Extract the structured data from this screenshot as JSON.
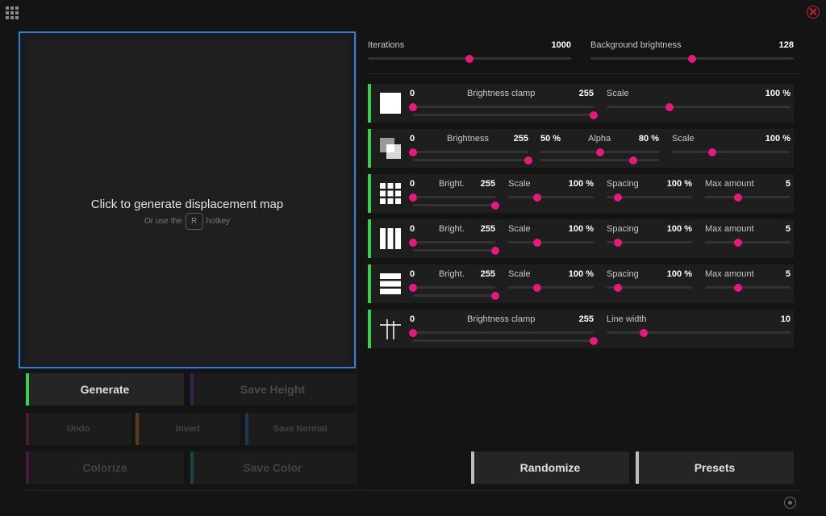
{
  "canvas": {
    "title": "Click to generate displacement map",
    "hint_before": "Or use the",
    "hint_key": "R",
    "hint_after": "hotkey"
  },
  "left_buttons": {
    "generate": "Generate",
    "save_height": "Save Height",
    "undo": "Undo",
    "invert": "Invert",
    "save_normal": "Save Normal",
    "colorize": "Colorize",
    "save_color": "Save Color"
  },
  "global": {
    "iterations_label": "Iterations",
    "iterations_value": "1000",
    "bg_label": "Background brightness",
    "bg_value": "128"
  },
  "rows": {
    "r1": {
      "icon": "solid-square-icon",
      "min": "0",
      "clamp_label": "Brightness clamp",
      "clamp_value": "255",
      "scale_label": "Scale",
      "scale_value": "100 %"
    },
    "r2": {
      "icon": "overlapping-squares-icon",
      "min": "0",
      "bright_label": "Brightness",
      "bright_value": "255",
      "alpha_min": "50 %",
      "alpha_label": "Alpha",
      "alpha_value": "80 %",
      "scale_label": "Scale",
      "scale_value": "100 %"
    },
    "r3": {
      "icon": "grid-icon",
      "min": "0",
      "bright_label": "Bright.",
      "bright_value": "255",
      "scale_label": "Scale",
      "scale_value": "100 %",
      "spacing_label": "Spacing",
      "spacing_value": "100 %",
      "max_label": "Max amount",
      "max_value": "5"
    },
    "r4": {
      "icon": "vertical-bars-icon",
      "min": "0",
      "bright_label": "Bright.",
      "bright_value": "255",
      "scale_label": "Scale",
      "scale_value": "100 %",
      "spacing_label": "Spacing",
      "spacing_value": "100 %",
      "max_label": "Max amount",
      "max_value": "5"
    },
    "r5": {
      "icon": "horizontal-bars-icon",
      "min": "0",
      "bright_label": "Bright.",
      "bright_value": "255",
      "scale_label": "Scale",
      "scale_value": "100 %",
      "spacing_label": "Spacing",
      "spacing_value": "100 %",
      "max_label": "Max amount",
      "max_value": "5"
    },
    "r6": {
      "icon": "lines-icon",
      "min": "0",
      "clamp_label": "Brightness clamp",
      "clamp_value": "255",
      "width_label": "Line width",
      "width_value": "10"
    }
  },
  "right_buttons": {
    "randomize": "Randomize",
    "presets": "Presets"
  },
  "colors": {
    "accent_pink": "#e6197d",
    "row_accent_green": "#3ecf4f",
    "canvas_border_blue": "#2f7fd9"
  }
}
